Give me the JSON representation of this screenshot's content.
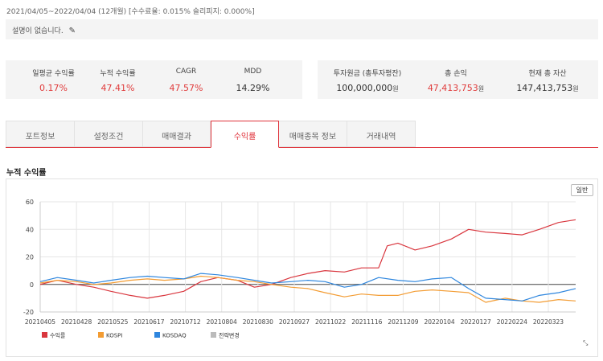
{
  "header": {
    "period": "2021/04/05~2022/04/04 (12개월) [수수료율: 0.015% 슬리피지: 0.000%]",
    "description": "설명이 없습니다."
  },
  "stats_left": [
    {
      "label": "일평균 수익률",
      "value": "0.17%",
      "color": "red"
    },
    {
      "label": "누적 수익률",
      "value": "47.41%",
      "color": "red"
    },
    {
      "label": "CAGR",
      "value": "47.57%",
      "color": "red"
    },
    {
      "label": "MDD",
      "value": "14.29%",
      "color": "black"
    }
  ],
  "stats_right": [
    {
      "label": "투자원금 (총투자평잔)",
      "value": "100,000,000",
      "unit": "원",
      "color": "black"
    },
    {
      "label": "총 손익",
      "value": "47,413,753",
      "unit": "원",
      "color": "red"
    },
    {
      "label": "현재 총 자산",
      "value": "147,413,753",
      "unit": "원",
      "color": "black"
    }
  ],
  "tabs": [
    {
      "label": "포트정보",
      "active": false
    },
    {
      "label": "설정조건",
      "active": false
    },
    {
      "label": "매매결과",
      "active": false
    },
    {
      "label": "수익률",
      "active": true
    },
    {
      "label": "매매종목 정보",
      "active": false
    },
    {
      "label": "거래내역",
      "active": false
    }
  ],
  "chart_title": "누적 수익률",
  "mode_button": "일반",
  "icons": {
    "edit": "pencil-icon",
    "resize": "resize-handle-icon"
  },
  "chart_data": {
    "type": "line",
    "title": "누적 수익률",
    "ylim": [
      -20,
      60
    ],
    "yticks": [
      -20,
      0,
      20,
      40,
      60
    ],
    "grid": true,
    "legend_position": "bottom-left",
    "x_tick_labels": [
      "20210405",
      "20210428",
      "20210525",
      "20210617",
      "20210712",
      "20210804",
      "20210830",
      "20210927",
      "20211022",
      "20211116",
      "20211209",
      "20220104",
      "20220127",
      "20220224",
      "20220323"
    ],
    "x_index_range": [
      0,
      250
    ],
    "series": [
      {
        "name": "수익률",
        "color": "#d9363e",
        "points": [
          [
            0,
            0
          ],
          [
            8,
            3
          ],
          [
            17,
            0
          ],
          [
            25,
            -2
          ],
          [
            33,
            -5
          ],
          [
            42,
            -8
          ],
          [
            50,
            -10
          ],
          [
            58,
            -8
          ],
          [
            67,
            -5
          ],
          [
            75,
            2
          ],
          [
            83,
            5
          ],
          [
            92,
            3
          ],
          [
            100,
            -2
          ],
          [
            108,
            0
          ],
          [
            117,
            5
          ],
          [
            125,
            8
          ],
          [
            133,
            10
          ],
          [
            142,
            9
          ],
          [
            150,
            12
          ],
          [
            158,
            12
          ],
          [
            162,
            28
          ],
          [
            167,
            30
          ],
          [
            175,
            25
          ],
          [
            183,
            28
          ],
          [
            192,
            33
          ],
          [
            200,
            40
          ],
          [
            208,
            38
          ],
          [
            217,
            37
          ],
          [
            225,
            36
          ],
          [
            233,
            40
          ],
          [
            242,
            45
          ],
          [
            250,
            47
          ]
        ]
      },
      {
        "name": "KOSPI",
        "color": "#f39c33",
        "points": [
          [
            0,
            1
          ],
          [
            8,
            3
          ],
          [
            17,
            2
          ],
          [
            25,
            0
          ],
          [
            33,
            1
          ],
          [
            42,
            3
          ],
          [
            50,
            4
          ],
          [
            58,
            3
          ],
          [
            67,
            4
          ],
          [
            75,
            6
          ],
          [
            83,
            5
          ],
          [
            92,
            3
          ],
          [
            100,
            2
          ],
          [
            108,
            0
          ],
          [
            117,
            -2
          ],
          [
            125,
            -3
          ],
          [
            133,
            -6
          ],
          [
            142,
            -9
          ],
          [
            150,
            -7
          ],
          [
            158,
            -8
          ],
          [
            167,
            -8
          ],
          [
            175,
            -5
          ],
          [
            183,
            -4
          ],
          [
            192,
            -5
          ],
          [
            200,
            -6
          ],
          [
            208,
            -13
          ],
          [
            217,
            -10
          ],
          [
            225,
            -12
          ],
          [
            233,
            -13
          ],
          [
            242,
            -11
          ],
          [
            250,
            -12
          ]
        ]
      },
      {
        "name": "KOSDAQ",
        "color": "#2e86de",
        "points": [
          [
            0,
            2
          ],
          [
            8,
            5
          ],
          [
            17,
            3
          ],
          [
            25,
            1
          ],
          [
            33,
            3
          ],
          [
            42,
            5
          ],
          [
            50,
            6
          ],
          [
            58,
            5
          ],
          [
            67,
            4
          ],
          [
            75,
            8
          ],
          [
            83,
            7
          ],
          [
            92,
            5
          ],
          [
            100,
            3
          ],
          [
            108,
            1
          ],
          [
            117,
            2
          ],
          [
            125,
            3
          ],
          [
            133,
            2
          ],
          [
            142,
            -2
          ],
          [
            150,
            0
          ],
          [
            158,
            5
          ],
          [
            167,
            3
          ],
          [
            175,
            2
          ],
          [
            183,
            4
          ],
          [
            192,
            5
          ],
          [
            200,
            -3
          ],
          [
            208,
            -10
          ],
          [
            217,
            -11
          ],
          [
            225,
            -12
          ],
          [
            233,
            -8
          ],
          [
            242,
            -6
          ],
          [
            250,
            -3
          ]
        ]
      },
      {
        "name": "전략변경",
        "color": "#bbbbbb",
        "points": []
      }
    ]
  }
}
